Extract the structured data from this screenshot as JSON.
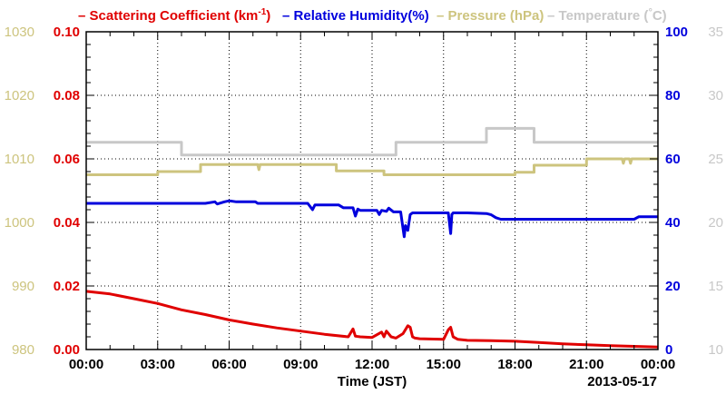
{
  "legend": [
    {
      "dash": "–",
      "label": "Scattering Coefficient (km",
      "sup": "-1",
      "suffix": ")",
      "color": "#e00000"
    },
    {
      "dash": "–",
      "label": "Relative Humidity(%)",
      "color": "#0000dd"
    },
    {
      "dash": "–",
      "label": "Pressure (hPa)",
      "color": "#cdc47e"
    },
    {
      "dash": "–",
      "label": "Temperature (",
      "deg": "°",
      "suffix": "C)",
      "color": "#c8c8c8"
    }
  ],
  "date_label": "2013-05-17",
  "chart_data": {
    "type": "line",
    "title": "",
    "xlabel": "Time (JST)",
    "x_ticks": [
      "00:00",
      "03:00",
      "06:00",
      "09:00",
      "12:00",
      "15:00",
      "18:00",
      "21:00",
      "00:00"
    ],
    "xlim": [
      0,
      24
    ],
    "grid": true,
    "axes": {
      "pressure": {
        "side": "left-outer",
        "range": [
          980,
          1030
        ],
        "ticks": [
          "980",
          "990",
          "1000",
          "1010",
          "1020",
          "1030"
        ],
        "color": "#cdc47e"
      },
      "scattering": {
        "side": "left-inner",
        "range": [
          0,
          0.1
        ],
        "ticks": [
          "0.00",
          "0.02",
          "0.04",
          "0.06",
          "0.08",
          "0.10"
        ],
        "color": "#e00000"
      },
      "humidity": {
        "side": "right-inner",
        "range": [
          0,
          100
        ],
        "ticks": [
          "0",
          "20",
          "40",
          "60",
          "80",
          "100"
        ],
        "color": "#0000dd"
      },
      "temperature": {
        "side": "right-outer",
        "range": [
          10,
          35
        ],
        "ticks": [
          "10",
          "15",
          "20",
          "25",
          "30",
          "35"
        ],
        "color": "#c8c8c8"
      }
    },
    "series": [
      {
        "name": "Temperature (°C)",
        "axis": "temperature",
        "color": "#c8c8c8",
        "step": true,
        "x": [
          0,
          4.0,
          4.0,
          13.0,
          13.0,
          16.8,
          16.8,
          18.8,
          18.8,
          24
        ],
        "y": [
          26.3,
          26.3,
          25.3,
          25.3,
          26.3,
          26.3,
          27.4,
          27.4,
          26.3,
          26.3
        ]
      },
      {
        "name": "Pressure (hPa)",
        "axis": "pressure",
        "color": "#cdc47e",
        "step": true,
        "x": [
          0,
          3.0,
          3.0,
          4.8,
          4.8,
          7.2,
          7.25,
          7.3,
          10.5,
          10.5,
          12.5,
          12.5,
          18.0,
          18.0,
          18.8,
          18.8,
          21.0,
          21.0,
          22.5,
          22.55,
          22.6,
          22.8,
          22.85,
          22.9,
          24
        ],
        "y": [
          1007.5,
          1007.5,
          1008.0,
          1008.0,
          1009.1,
          1009.1,
          1008.3,
          1009.1,
          1009.1,
          1008.1,
          1008.1,
          1007.5,
          1007.5,
          1007.9,
          1007.9,
          1009.0,
          1009.0,
          1010.0,
          1010.0,
          1009.3,
          1010.0,
          1010.0,
          1009.3,
          1010.0,
          1010.0
        ]
      },
      {
        "name": "Relative Humidity(%)",
        "axis": "humidity",
        "color": "#0000dd",
        "step": false,
        "x": [
          0,
          5.0,
          5.4,
          5.5,
          5.8,
          6.0,
          6.3,
          7.1,
          7.2,
          9.3,
          9.5,
          9.6,
          10.6,
          10.8,
          11.2,
          11.3,
          11.4,
          11.5,
          12.2,
          12.3,
          12.4,
          12.6,
          12.7,
          12.9,
          13.2,
          13.35,
          13.4,
          13.5,
          13.6,
          13.7,
          14.0,
          15.2,
          15.3,
          15.35,
          15.4,
          15.5,
          16.0,
          16.8,
          17.0,
          17.2,
          17.4,
          18.0,
          23.0,
          23.2,
          24
        ],
        "y": [
          46,
          46,
          46.5,
          45.8,
          46.5,
          46.8,
          46.5,
          46.5,
          46,
          46,
          44,
          45.5,
          45.5,
          44.6,
          44.6,
          42,
          44.2,
          43.8,
          43.8,
          42.5,
          43.8,
          43.5,
          44.5,
          43.3,
          43.3,
          35.5,
          39,
          37.5,
          42.5,
          43,
          43,
          43,
          36.5,
          42.5,
          43,
          43,
          43,
          42.8,
          42.4,
          41.5,
          41,
          41,
          41,
          41.8,
          41.8
        ]
      },
      {
        "name": "Scattering Coefficient (km-1)",
        "axis": "scattering",
        "color": "#e00000",
        "step": false,
        "x": [
          0,
          1.0,
          2.0,
          3.0,
          4.0,
          5.0,
          6.0,
          7.0,
          8.0,
          9.0,
          10.0,
          11.0,
          11.2,
          11.3,
          11.5,
          12.0,
          12.4,
          12.5,
          12.6,
          12.8,
          13.0,
          13.3,
          13.5,
          13.6,
          13.7,
          13.8,
          14.0,
          15.0,
          15.2,
          15.3,
          15.4,
          15.6,
          16.0,
          17.0,
          18.0,
          19.0,
          20.0,
          21.0,
          22.0,
          23.0,
          24
        ],
        "y": [
          0.0183,
          0.0175,
          0.016,
          0.0145,
          0.0125,
          0.011,
          0.0093,
          0.008,
          0.0068,
          0.0058,
          0.0048,
          0.004,
          0.0065,
          0.0042,
          0.004,
          0.0038,
          0.0055,
          0.004,
          0.0058,
          0.004,
          0.0036,
          0.005,
          0.0075,
          0.007,
          0.004,
          0.0036,
          0.0034,
          0.0032,
          0.0062,
          0.007,
          0.004,
          0.0032,
          0.0029,
          0.0028,
          0.0026,
          0.0022,
          0.0018,
          0.0015,
          0.0012,
          0.001,
          0.0008
        ]
      }
    ]
  }
}
